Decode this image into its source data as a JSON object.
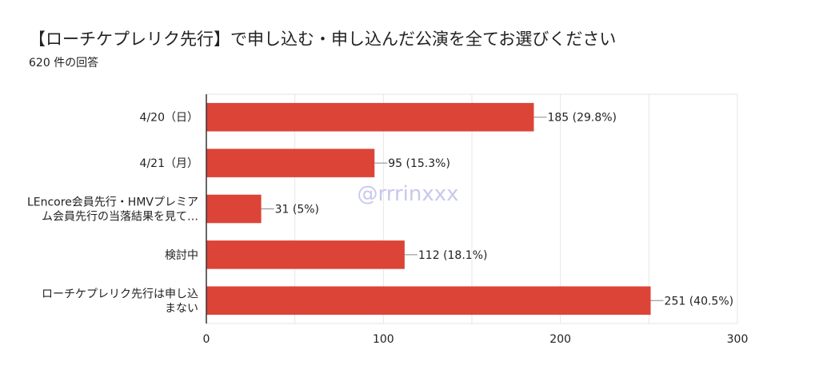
{
  "title": "【ローチケプレリク先行】で申し込む・申し込んだ公演を全てお選びください",
  "response_count": "620 件の回答",
  "watermark": "@rrrinxxx",
  "colors": {
    "bar": "#dc4437",
    "grid": "#e6e6e6",
    "axis": "#333333",
    "text": "#222222",
    "watermark": "#c8c8ee"
  },
  "chart_data": {
    "type": "bar",
    "orientation": "horizontal",
    "title": "【ローチケプレリク先行】で申し込む・申し込んだ公演を全てお選びください",
    "xlabel": "",
    "ylabel": "",
    "xlim": [
      0,
      300
    ],
    "x_ticks": [
      0,
      100,
      200,
      300
    ],
    "grid": true,
    "categories": [
      [
        "4/20（日）"
      ],
      [
        "4/21（月）"
      ],
      [
        "LEncore会員先行・HMVプレミア",
        "ム会員先行の当落結果を見て…"
      ],
      [
        "検討中"
      ],
      [
        "ローチケプレリク先行は申し込",
        "まない"
      ]
    ],
    "values": [
      185,
      95,
      31,
      112,
      251
    ],
    "data_labels": [
      "185 (29.8%)",
      "95 (15.3%)",
      "31 (5%)",
      "112 (18.1%)",
      "251 (40.5%)"
    ]
  }
}
